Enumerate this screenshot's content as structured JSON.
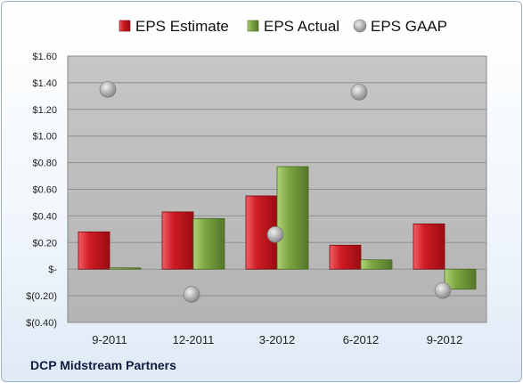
{
  "footer": "DCP Midstream Partners",
  "chart_data": {
    "type": "bar",
    "categories": [
      "9-2011",
      "12-2011",
      "3-2012",
      "6-2012",
      "9-2012"
    ],
    "series": [
      {
        "name": "EPS Estimate",
        "kind": "bar",
        "color": "#c8141c",
        "values": [
          0.28,
          0.43,
          0.55,
          0.18,
          0.34
        ]
      },
      {
        "name": "EPS Actual",
        "kind": "bar",
        "color": "#78a23a",
        "values": [
          0.01,
          0.38,
          0.77,
          0.07,
          -0.15
        ]
      },
      {
        "name": "EPS GAAP",
        "kind": "scatter",
        "color": "#a9a9a9",
        "values": [
          1.35,
          -0.19,
          0.26,
          1.33,
          -0.16
        ]
      }
    ],
    "ylim": [
      -0.4,
      1.6
    ],
    "yticks": [
      1.6,
      1.4,
      1.2,
      1.0,
      0.8,
      0.6,
      0.4,
      0.2,
      0,
      -0.2,
      -0.4
    ],
    "ytick_labels": [
      "$1.60",
      "$1.40",
      "$1.20",
      "$1.00",
      "$0.80",
      "$0.60",
      "$0.40",
      "$0.20",
      "$-",
      "$(0.20)",
      "$(0.40)"
    ],
    "legend_position": "top",
    "grid": true
  }
}
